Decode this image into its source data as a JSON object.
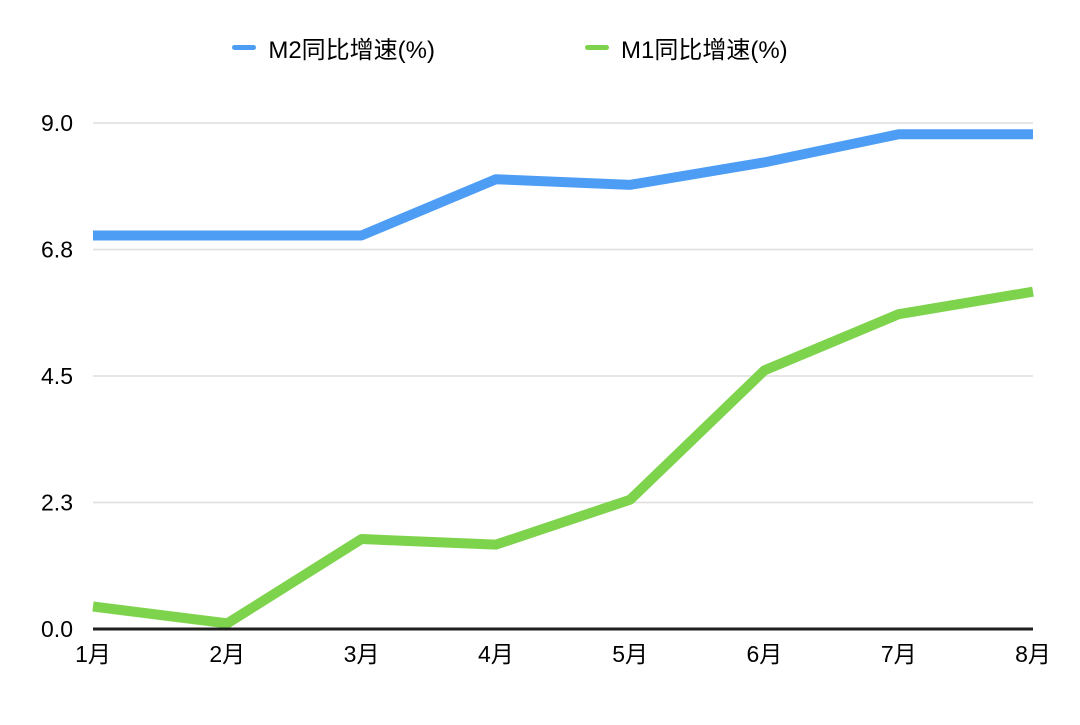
{
  "chart_data": {
    "type": "line",
    "categories": [
      "1月",
      "2月",
      "3月",
      "4月",
      "5月",
      "6月",
      "7月",
      "8月"
    ],
    "series": [
      {
        "id": "m2",
        "name": "M2同比增速(%)",
        "color": "#4D9DF5",
        "values": [
          7.0,
          7.0,
          7.0,
          8.0,
          7.9,
          8.3,
          8.8,
          8.8
        ]
      },
      {
        "id": "m1",
        "name": "M1同比增速(%)",
        "color": "#7ED34C",
        "values": [
          0.4,
          0.1,
          1.6,
          1.5,
          2.3,
          4.6,
          5.6,
          6.0
        ]
      }
    ],
    "ytick_labels": [
      "0.0",
      "2.3",
      "4.5",
      "6.8",
      "9.0"
    ],
    "ylim": [
      0,
      9
    ],
    "grid": true,
    "legend_position": "top",
    "colors": {
      "grid": "#DDDDDD",
      "axis": "#1F1F1F",
      "text": "#000000",
      "background": "#FFFFFF"
    }
  }
}
